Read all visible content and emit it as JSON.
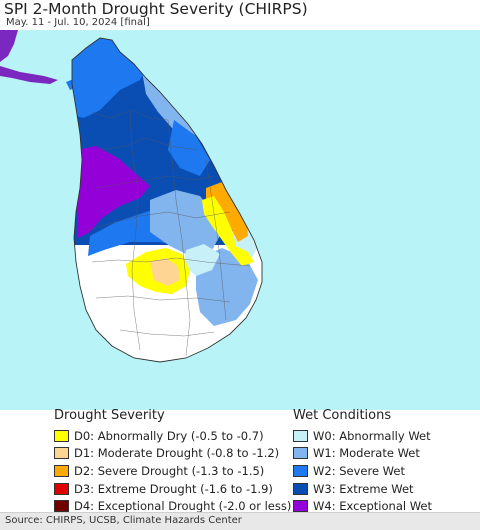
{
  "header": {
    "title": "SPI 2-Month Drought Severity (CHIRPS)",
    "subtitle": "May. 11 - Jul. 10, 2024 [final]"
  },
  "colors": {
    "ocean": "#b8f4f7",
    "india": "#7a28c0",
    "land_neutral": "#ffffff",
    "d0": "#ffff00",
    "d1": "#ffd593",
    "d2": "#ffaa00",
    "d3": "#e00000",
    "d4": "#730000",
    "w0": "#c8f0f8",
    "w1": "#82b4ee",
    "w2": "#1e78f0",
    "w3": "#0a4eb4",
    "w4": "#9400d8"
  },
  "legend": {
    "drought": {
      "title": "Drought Severity",
      "items": [
        {
          "label": "D0: Abnormally Dry (-0.5 to -0.7)",
          "color": "#ffff00"
        },
        {
          "label": "D1: Moderate Drought (-0.8 to -1.2)",
          "color": "#ffd593"
        },
        {
          "label": "D2: Severe Drought (-1.3 to -1.5)",
          "color": "#ffaa00"
        },
        {
          "label": "D3: Extreme Drought (-1.6 to -1.9)",
          "color": "#e00000"
        },
        {
          "label": "D4: Exceptional Drought (-2.0 or less)",
          "color": "#730000"
        }
      ]
    },
    "wet": {
      "title": "Wet Conditions",
      "items": [
        {
          "label": "W0: Abnormally Wet",
          "color": "#c8f0f8"
        },
        {
          "label": "W1: Moderate Wet",
          "color": "#82b4ee"
        },
        {
          "label": "W2: Severe Wet",
          "color": "#1e78f0"
        },
        {
          "label": "W3: Extreme Wet",
          "color": "#0a4eb4"
        },
        {
          "label": "W4: Exceptional Wet",
          "color": "#9400d8"
        }
      ]
    }
  },
  "footer": {
    "source": "Source: CHIRPS, UCSB, Climate Hazards Center"
  }
}
